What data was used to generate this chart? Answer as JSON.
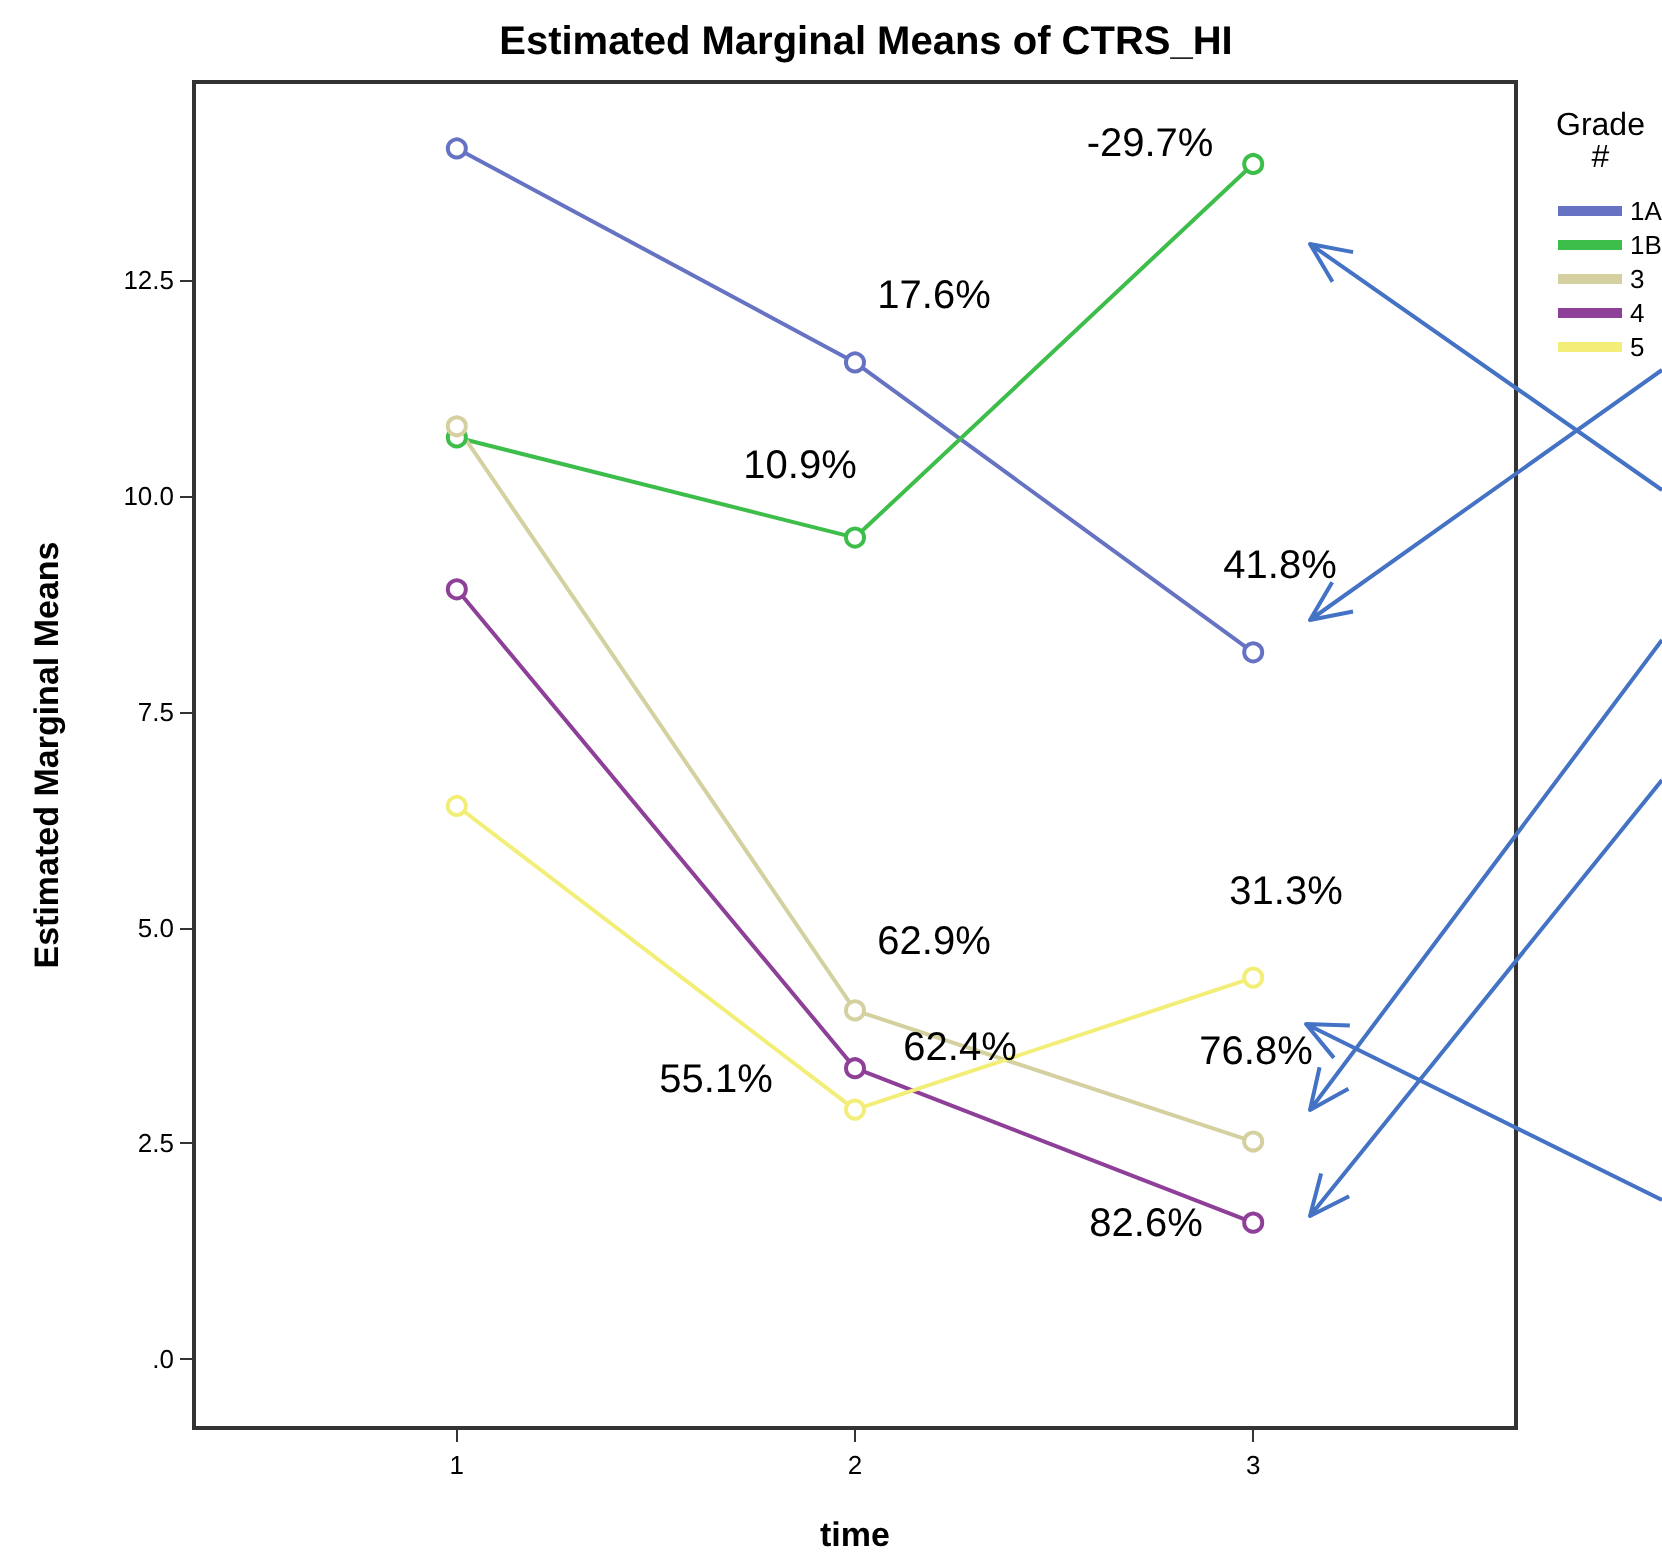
{
  "chart_data": {
    "type": "line",
    "title": "Estimated Marginal Means of CTRS_HI",
    "xlabel": "time",
    "ylabel": "Estimated Marginal Means",
    "legend_title": "Grade\n#",
    "x": [
      1,
      2,
      3
    ],
    "xlim": [
      0.34,
      3.66
    ],
    "xticks": [
      1,
      2,
      3
    ],
    "ylim": [
      -0.8,
      14.8
    ],
    "yticks": [
      {
        "value": 0,
        "label": ".0"
      },
      2.5,
      {
        "value": 5,
        "label": "5.0"
      },
      7.5,
      {
        "value": 10,
        "label": "10.0"
      },
      12.5
    ],
    "grid": false,
    "legend": "right",
    "marker": "circle",
    "line_style": "solid",
    "series": [
      {
        "name": "1A",
        "color": "#6673c2",
        "values": [
          14.03,
          11.55,
          8.19
        ]
      },
      {
        "name": "1B",
        "color": "#3dbd4a",
        "values": [
          10.68,
          9.52,
          13.85
        ]
      },
      {
        "name": "3",
        "color": "#d4d0a0",
        "values": [
          10.81,
          4.04,
          2.52
        ]
      },
      {
        "name": "4",
        "color": "#8e3f98",
        "values": [
          8.92,
          3.37,
          1.58
        ]
      },
      {
        "name": "5",
        "color": "#f2ee78",
        "values": [
          6.41,
          2.89,
          4.42
        ]
      }
    ],
    "annotations": [
      "-29.7%",
      "17.6%",
      "10.9%",
      "41.8%",
      "31.3%",
      "62.9%",
      "62.4%",
      "55.1%",
      "76.8%",
      "82.6%"
    ]
  }
}
